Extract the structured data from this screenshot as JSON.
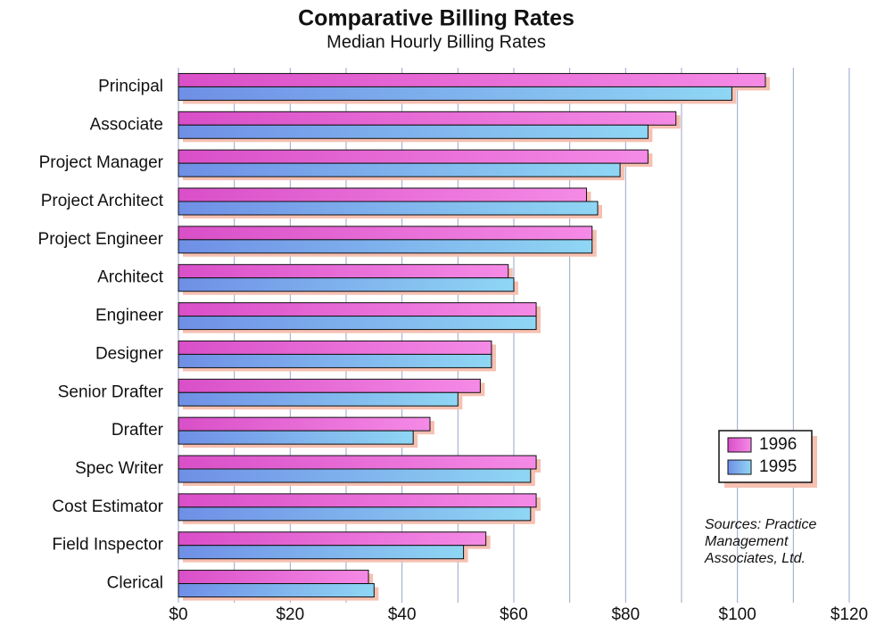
{
  "chart_data": {
    "type": "hbar",
    "title": "Comparative Billing Rates",
    "subtitle": "Median Hourly Billing Rates",
    "categories": [
      "Principal",
      "Associate",
      "Project Manager",
      "Project Architect",
      "Project Engineer",
      "Architect",
      "Engineer",
      "Designer",
      "Senior Drafter",
      "Drafter",
      "Spec Writer",
      "Cost Estimator",
      "Field Inspector",
      "Clerical"
    ],
    "series": [
      {
        "name": "1996",
        "color": "#d94fc8",
        "values": [
          105,
          89,
          84,
          73,
          74,
          59,
          64,
          56,
          54,
          45,
          64,
          64,
          55,
          34
        ]
      },
      {
        "name": "1995",
        "color": "#6f8fe6",
        "values": [
          99,
          84,
          79,
          75,
          74,
          60,
          64,
          56,
          50,
          42,
          63,
          63,
          51,
          35
        ]
      }
    ],
    "xlim": [
      0,
      120
    ],
    "xticks": [
      {
        "value": 0,
        "label": "$0"
      },
      {
        "value": 20,
        "label": "$20"
      },
      {
        "value": 40,
        "label": "$40"
      },
      {
        "value": 60,
        "label": "$60"
      },
      {
        "value": 80,
        "label": "$80"
      },
      {
        "value": 100,
        "label": "$100"
      },
      {
        "value": 120,
        "label": "$120"
      }
    ],
    "minor_grid": [
      10,
      30,
      50,
      70,
      90,
      110
    ],
    "grid": true,
    "legend": "lower right",
    "annotation": [
      "Sources:  Practice",
      "Management",
      "Associates, Ltd."
    ]
  }
}
